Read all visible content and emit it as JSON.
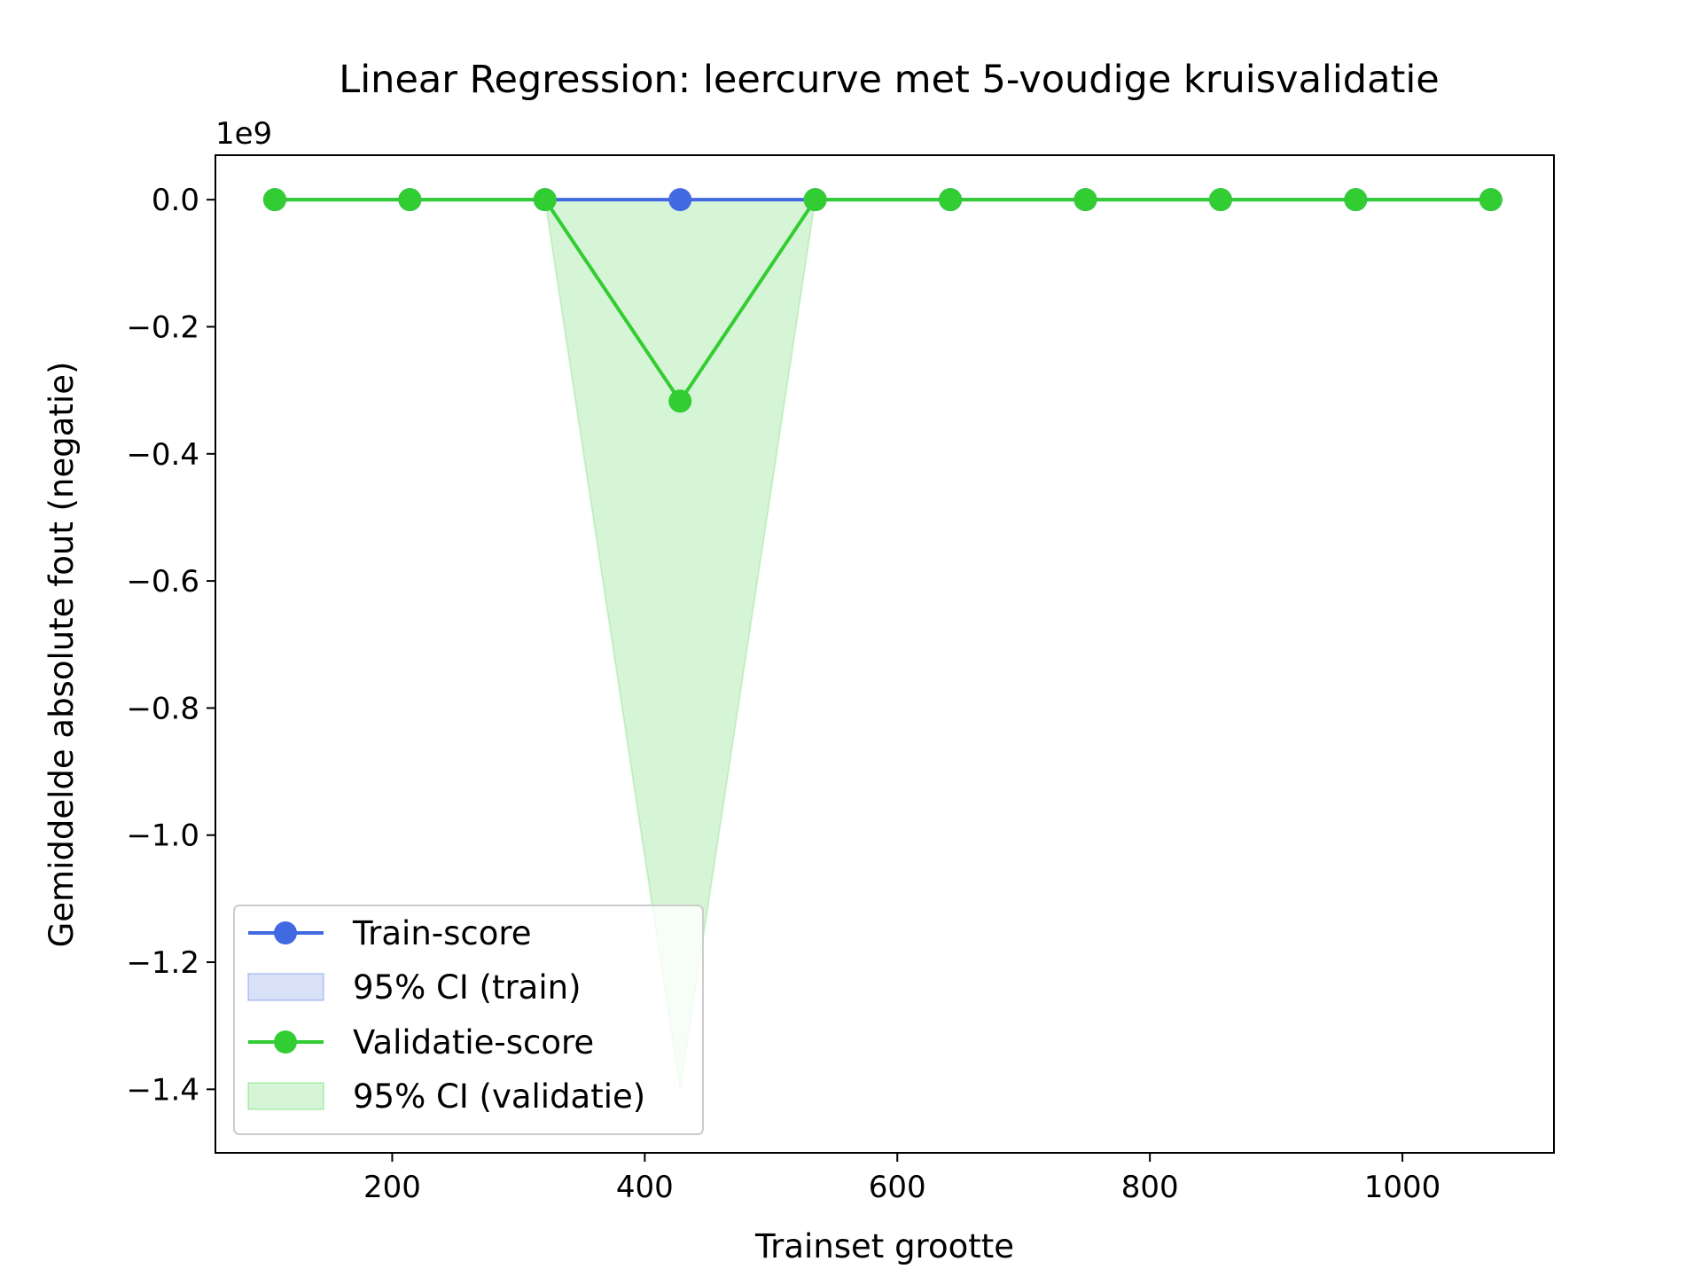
{
  "chart_data": {
    "type": "line",
    "title": "Linear Regression: leercurve met 5-voudige kruisvalidatie",
    "xlabel": "Trainset grootte",
    "ylabel": "Gemiddelde absolute fout (negatie)",
    "y_offset_label": "1e9",
    "xlim": [
      60,
      1120
    ],
    "ylim": [
      -1.5,
      0.07
    ],
    "y_scale_factor": 1000000000,
    "grid": false,
    "legend_position": "lower-left",
    "x_ticks": [
      200,
      400,
      600,
      800,
      1000
    ],
    "x_tick_labels": [
      "200",
      "400",
      "600",
      "800",
      "1000"
    ],
    "y_ticks": [
      0.0,
      -0.2,
      -0.4,
      -0.6,
      -0.8,
      -1.0,
      -1.2,
      -1.4
    ],
    "y_tick_labels": [
      "0.0",
      "−0.2",
      "−0.4",
      "−0.6",
      "−0.8",
      "−1.0",
      "−1.2",
      "−1.4"
    ],
    "x": [
      107,
      214,
      321,
      428,
      535,
      642,
      749,
      856,
      963,
      1070
    ],
    "series": [
      {
        "name": "Train-score",
        "color": "#4169e1",
        "values": [
          0,
          0,
          0,
          0,
          0,
          0,
          0,
          0,
          0,
          0
        ],
        "ci_name": "95% CI (train)",
        "ci_lower": [
          0,
          0,
          0,
          0,
          0,
          0,
          0,
          0,
          0,
          0
        ],
        "ci_upper": [
          0,
          0,
          0,
          0,
          0,
          0,
          0,
          0,
          0,
          0
        ]
      },
      {
        "name": "Validatie-score",
        "color": "#32cd32",
        "values": [
          0,
          0,
          0,
          -0.317,
          0,
          0,
          0,
          0,
          0,
          0
        ],
        "ci_name": "95% CI (validatie)",
        "ci_lower": [
          0,
          0,
          0,
          -1.4,
          0,
          0,
          0,
          0,
          0,
          0
        ],
        "ci_upper": [
          0,
          0,
          0,
          0,
          0,
          0,
          0,
          0,
          0,
          0
        ]
      }
    ]
  }
}
